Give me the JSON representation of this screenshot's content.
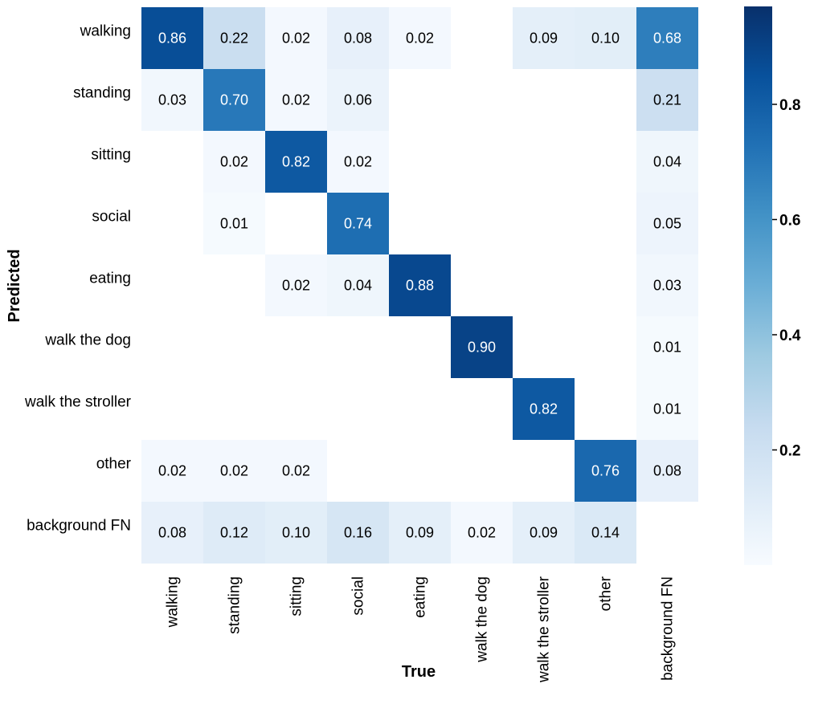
{
  "chart_data": {
    "type": "heatmap",
    "title": "",
    "xlabel": "True",
    "ylabel": "Predicted",
    "x_categories": [
      "walking",
      "standing",
      "sitting",
      "social",
      "eating",
      "walk the dog",
      "walk the stroller",
      "other",
      "background FN"
    ],
    "y_categories": [
      "walking",
      "standing",
      "sitting",
      "social",
      "eating",
      "walk the dog",
      "walk the stroller",
      "other",
      "background FN"
    ],
    "values": [
      [
        0.86,
        0.22,
        0.02,
        0.08,
        0.02,
        null,
        0.09,
        0.1,
        0.68
      ],
      [
        0.03,
        0.7,
        0.02,
        0.06,
        null,
        null,
        null,
        null,
        0.21
      ],
      [
        null,
        0.02,
        0.82,
        0.02,
        null,
        null,
        null,
        null,
        0.04
      ],
      [
        null,
        0.01,
        null,
        0.74,
        null,
        null,
        null,
        null,
        0.05
      ],
      [
        null,
        null,
        0.02,
        0.04,
        0.88,
        null,
        null,
        null,
        0.03
      ],
      [
        null,
        null,
        null,
        null,
        null,
        0.9,
        null,
        null,
        0.01
      ],
      [
        null,
        null,
        null,
        null,
        null,
        null,
        0.82,
        null,
        0.01
      ],
      [
        0.02,
        0.02,
        0.02,
        null,
        null,
        null,
        null,
        0.76,
        0.08
      ],
      [
        0.08,
        0.12,
        0.1,
        0.16,
        0.09,
        0.02,
        0.09,
        0.14,
        null
      ]
    ],
    "colorscale": "Blues",
    "colorbar": {
      "range": [
        0,
        0.97
      ],
      "ticks": [
        0.2,
        0.4,
        0.6,
        0.8
      ],
      "tick_labels": [
        "0.2",
        "0.4",
        "0.6",
        "0.8"
      ]
    }
  }
}
